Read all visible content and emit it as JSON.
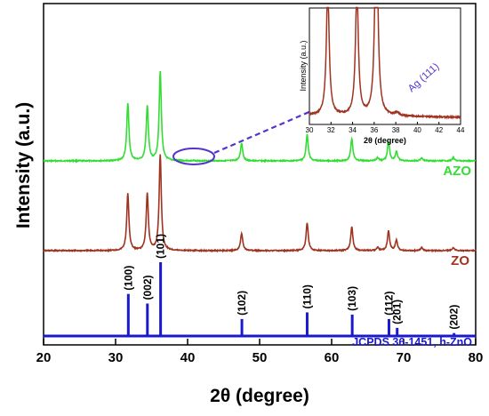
{
  "chart_data": {
    "type": "line",
    "xlabel": "2θ (degree)",
    "ylabel": "Intensity (a.u.)",
    "xlim": [
      20,
      80
    ],
    "xticks": [
      20,
      30,
      40,
      50,
      60,
      70,
      80
    ],
    "series": [
      {
        "name": "AZO",
        "color": "#33dd33",
        "peaks": [
          {
            "x": 31.7,
            "h": 0.55
          },
          {
            "x": 34.4,
            "h": 0.52
          },
          {
            "x": 36.2,
            "h": 0.85
          },
          {
            "x": 47.5,
            "h": 0.17
          },
          {
            "x": 56.6,
            "h": 0.25
          },
          {
            "x": 62.8,
            "h": 0.21
          },
          {
            "x": 66.4,
            "h": 0.03
          },
          {
            "x": 67.9,
            "h": 0.18
          },
          {
            "x": 69.0,
            "h": 0.09
          },
          {
            "x": 72.5,
            "h": 0.03
          },
          {
            "x": 76.9,
            "h": 0.03
          }
        ]
      },
      {
        "name": "ZO",
        "color": "#a0331f",
        "peaks": [
          {
            "x": 31.7,
            "h": 0.55
          },
          {
            "x": 34.4,
            "h": 0.55
          },
          {
            "x": 36.2,
            "h": 0.93
          },
          {
            "x": 47.5,
            "h": 0.17
          },
          {
            "x": 56.6,
            "h": 0.27
          },
          {
            "x": 62.8,
            "h": 0.23
          },
          {
            "x": 66.4,
            "h": 0.03
          },
          {
            "x": 67.9,
            "h": 0.19
          },
          {
            "x": 69.0,
            "h": 0.1
          },
          {
            "x": 72.5,
            "h": 0.03
          },
          {
            "x": 76.9,
            "h": 0.03
          }
        ]
      }
    ],
    "reference": {
      "label": "JCPDS 36-1451, h-ZnO",
      "color": "#1a1acc",
      "lines": [
        {
          "x": 31.77,
          "hkl": "(100)",
          "h": 0.57
        },
        {
          "x": 34.42,
          "hkl": "(002)",
          "h": 0.44
        },
        {
          "x": 36.25,
          "hkl": "(101)",
          "h": 1.0
        },
        {
          "x": 47.54,
          "hkl": "(102)",
          "h": 0.23
        },
        {
          "x": 56.6,
          "hkl": "(110)",
          "h": 0.32
        },
        {
          "x": 62.86,
          "hkl": "(103)",
          "h": 0.29
        },
        {
          "x": 67.96,
          "hkl": "(112)",
          "h": 0.23
        },
        {
          "x": 69.1,
          "hkl": "(201)",
          "h": 0.11
        },
        {
          "x": 77.0,
          "hkl": "(202)",
          "h": 0.04
        }
      ]
    },
    "inset": {
      "xlabel": "2θ (degree)",
      "ylabel": "Intensity (a.u.)",
      "xlim": [
        30,
        44
      ],
      "xticks": [
        30,
        32,
        34,
        36,
        38,
        40,
        42,
        44
      ],
      "annotation": "Ag (111)",
      "annotation_x": 38.1,
      "color": "#a0331f"
    },
    "highlight_label_color": "#5533cc"
  }
}
